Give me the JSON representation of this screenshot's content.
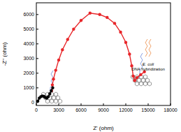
{
  "chart_data": {
    "type": "scatter",
    "x_label": "Z' (ohm)",
    "y_label": "-Z'' (ohm)",
    "annotations": [
      "E. coli DNA hybridization"
    ],
    "xlim": [
      0,
      18000
    ],
    "xticks": [
      0,
      3000,
      6000,
      9000,
      12000,
      15000,
      18000
    ],
    "ylim": [
      -200,
      6800
    ],
    "yticks": [
      0,
      1000,
      2000,
      3000,
      4000,
      5000,
      6000
    ],
    "series": [
      {
        "color": "#e8262a",
        "marker": "circle",
        "line_style": "solid",
        "x": [
          2050,
          2150,
          2300,
          2600,
          3000,
          3500,
          4200,
          5000,
          6000,
          7200,
          8500,
          9500,
          10500,
          11300,
          12000,
          12500,
          12800,
          13000,
          13200,
          13500,
          14000,
          14500
        ],
        "values": [
          800,
          1200,
          1600,
          2200,
          2900,
          3600,
          4300,
          5000,
          5600,
          6100,
          6000,
          5800,
          5400,
          4800,
          4100,
          3300,
          2500,
          1800,
          1500,
          1700,
          1900,
          2100
        ]
      },
      {
        "color": "#000000",
        "marker": "circle",
        "line_style": "solid",
        "x": [
          200,
          400,
          600,
          800,
          1000,
          1200,
          1400,
          1600,
          1800,
          2000,
          2200
        ],
        "values": [
          100,
          300,
          400,
          450,
          420,
          350,
          300,
          400,
          600,
          800,
          1000
        ]
      }
    ]
  }
}
